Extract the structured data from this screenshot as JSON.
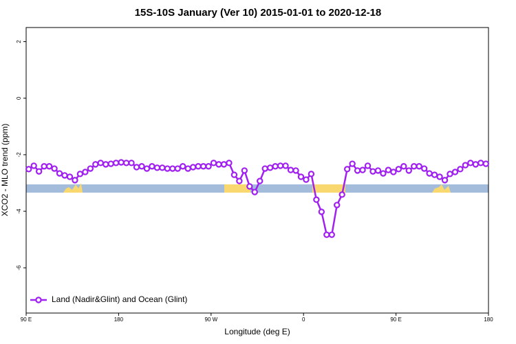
{
  "chart_data": {
    "type": "line",
    "title": "15S-10S January (Ver 10)   2015-01-01 to 2020-12-18",
    "x_label": "Longitude (deg E)",
    "y_label": "XCO2 - MLO trend (ppm)",
    "xlim": [
      90,
      540
    ],
    "xticks": [
      {
        "value": 90,
        "label": "90 E"
      },
      180,
      {
        "value": 270,
        "label": "90 W"
      },
      {
        "value": 360,
        "label": "0"
      },
      {
        "value": 450,
        "label": "90 E"
      },
      {
        "value": 540,
        "label": "180"
      }
    ],
    "ylim": [
      -7.6,
      2.5
    ],
    "yticks": [
      2,
      0,
      -2,
      -4,
      -6
    ],
    "legend": "bottom-left",
    "x": [
      92.5,
      97.5,
      102.5,
      107.5,
      112.5,
      117.5,
      122.5,
      127.5,
      132.5,
      137.5,
      142.5,
      147.5,
      152.5,
      157.5,
      162.5,
      167.5,
      172.5,
      177.5,
      182.5,
      187.5,
      192.5,
      197.5,
      202.5,
      207.5,
      212.5,
      217.5,
      222.5,
      227.5,
      232.5,
      237.5,
      242.5,
      247.5,
      252.5,
      257.5,
      262.5,
      267.5,
      272.5,
      277.5,
      282.5,
      287.5,
      292.5,
      297.5,
      302.5,
      307.5,
      312.5,
      317.5,
      322.5,
      327.5,
      332.5,
      337.5,
      342.5,
      347.5,
      352.5,
      357.5,
      362.5,
      367.5,
      372.5,
      377.5,
      382.5,
      387.5,
      392.5,
      397.5,
      402.5,
      407.5,
      412.5,
      417.5,
      422.5,
      427.5,
      432.5,
      437.5,
      442.5,
      447.5,
      452.5,
      457.5,
      462.5,
      467.5,
      472.5,
      477.5,
      482.5,
      487.5,
      492.5,
      497.5,
      502.5,
      507.5,
      512.5,
      517.5,
      522.5,
      527.5,
      532.5,
      537.5
    ],
    "series": [
      {
        "name": "Land (Nadir&Glint) and Ocean (Glint)",
        "color": "#a020f0",
        "values": [
          -2.51,
          -2.39,
          -2.59,
          -2.41,
          -2.41,
          -2.49,
          -2.66,
          -2.73,
          -2.78,
          -2.9,
          -2.68,
          -2.61,
          -2.49,
          -2.34,
          -2.29,
          -2.34,
          -2.32,
          -2.29,
          -2.27,
          -2.29,
          -2.29,
          -2.44,
          -2.41,
          -2.49,
          -2.41,
          -2.46,
          -2.46,
          -2.49,
          -2.49,
          -2.49,
          -2.41,
          -2.49,
          -2.44,
          -2.41,
          -2.41,
          -2.41,
          -2.29,
          -2.34,
          -2.34,
          -2.29,
          -2.71,
          -2.93,
          -2.56,
          -3.12,
          -3.32,
          -2.93,
          -2.49,
          -2.46,
          -2.41,
          -2.39,
          -2.39,
          -2.54,
          -2.56,
          -2.78,
          -2.88,
          -2.68,
          -3.59,
          -4.02,
          -4.83,
          -4.83,
          -3.78,
          -3.41,
          -2.51,
          -2.32,
          -2.56,
          -2.54,
          -2.39,
          -2.59,
          -2.56,
          -2.66,
          -2.54,
          -2.61,
          -2.51,
          -2.41,
          -2.56,
          -2.41,
          -2.41,
          -2.49,
          -2.66,
          -2.71,
          -2.78,
          -2.9,
          -2.68,
          -2.61,
          -2.51,
          -2.37,
          -2.29,
          -2.34,
          -2.29,
          -2.32
        ]
      }
    ]
  }
}
